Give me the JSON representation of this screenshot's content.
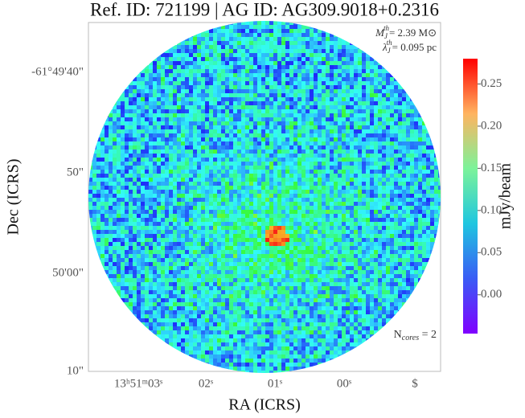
{
  "chart_data": {
    "type": "image",
    "title": "Ref. ID: 721199 | AG ID: AG309.9018+0.2316",
    "x_label": "RA (ICRS)",
    "y_label": "Dec (ICRS)",
    "x_tick_labels": [
      "13ʰ51ᵐ03ˢ",
      "02ˢ",
      "01ˢ",
      "00ˢ",
      "$"
    ],
    "y_tick_labels": [
      "-61°49'40\"",
      "50\"",
      "50'00\"",
      "10\""
    ],
    "colorbar": {
      "label": "mJy/beam",
      "clim": [
        -0.046,
        0.28
      ],
      "ticks": [
        {
          "value": 0,
          "label": "0.00"
        },
        0.05,
        {
          "value": 0.1,
          "label": "0.10"
        },
        0.15,
        {
          "value": 0.2,
          "label": "0.20"
        },
        0.25
      ]
    },
    "annotations": {
      "mass": {
        "symbol": "M",
        "sub": "J",
        "sup": "th",
        "text": "= 2.39 M⊙"
      },
      "length": {
        "symbol": "λ",
        "sub": "J",
        "sup": "th",
        "text": "= 0.095 pc"
      },
      "cores": {
        "symbol": "N",
        "sub": "cores",
        "text": " = 2"
      }
    }
  }
}
